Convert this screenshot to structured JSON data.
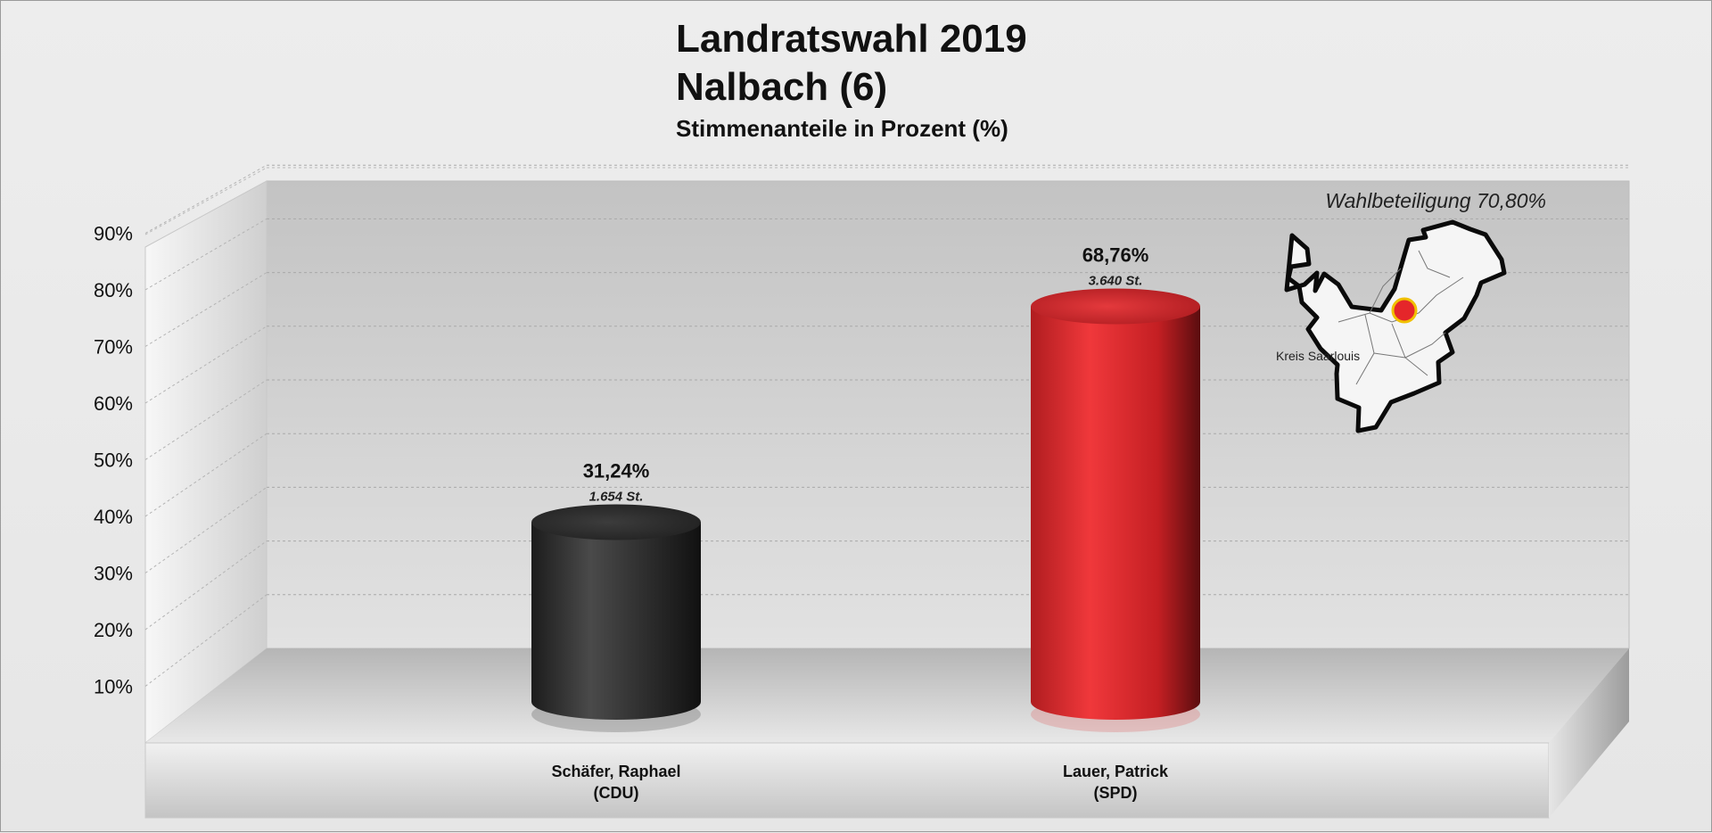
{
  "chart_data": {
    "type": "bar",
    "title": "Landratswahl 2019",
    "subtitle": "Nalbach (6)",
    "subtitle2": "Stimmenanteile in Prozent (%)",
    "annotation": "Wahlbeteiligung 70,80%",
    "map_label": "Kreis Saarlouis",
    "yticks": [
      "10%",
      "20%",
      "30%",
      "40%",
      "50%",
      "60%",
      "70%",
      "80%",
      "90%"
    ],
    "ylim": [
      0,
      90
    ],
    "grid": true,
    "bars": [
      {
        "label_line1": "Schäfer, Raphael",
        "label_line2": "(CDU)",
        "value": 31.24,
        "value_label": "31,24%",
        "votes_label": "1.654 St.",
        "color": "#3a3a3a"
      },
      {
        "label_line1": "Lauer, Patrick",
        "label_line2": "(SPD)",
        "value": 68.76,
        "value_label": "68,76%",
        "votes_label": "3.640 St.",
        "color": "#e0262a"
      }
    ]
  }
}
